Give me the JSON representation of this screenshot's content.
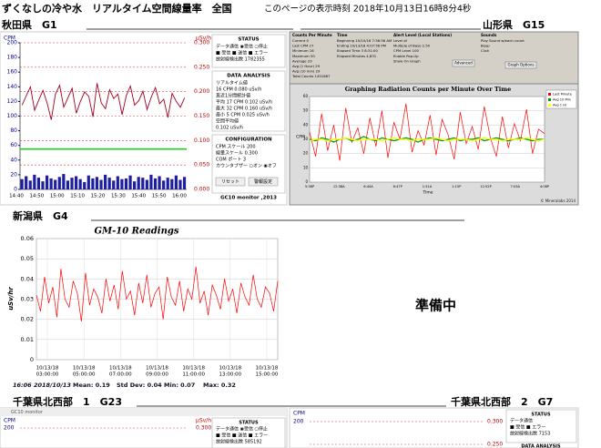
{
  "header": {
    "title": "ずくなしの冷や水　リアルタイム空間線量率　全国",
    "timestamp": "このページの表示時刻 2018年10月13日16時8分4秒"
  },
  "stations": [
    "秋田県　G1",
    "山形県　G15",
    "新潟県　G4",
    "千葉県北西部　1　G23",
    "千葉県北西部　2　G7"
  ],
  "akita": {
    "y_label": "CPM",
    "y2_label": "µSv/h",
    "ylim": [
      0,
      200
    ],
    "yticks": [
      0,
      20,
      40,
      60,
      80,
      100,
      120,
      140,
      160,
      180,
      200
    ],
    "y2lim": [
      0,
      0.3
    ],
    "y2ticks": [
      {
        "value": 0,
        "label": "0.000"
      },
      {
        "value": 0.05,
        "label": "0.050"
      },
      {
        "value": 0.1,
        "label": "0.100"
      },
      {
        "value": 0.15,
        "label": "0.150"
      },
      {
        "value": 0.2,
        "label": "0.200"
      },
      {
        "value": 0.25,
        "label": "0.250"
      },
      {
        "value": 0.3,
        "label": "0.300"
      }
    ],
    "x_labels": [
      "14:40",
      "14:50",
      "15:00",
      "15:10",
      "15:20",
      "15:30",
      "15:40",
      "15:50",
      "16:00"
    ],
    "cpm": [
      115,
      128,
      140,
      108,
      122,
      135,
      118,
      95,
      130,
      142,
      112,
      125,
      138,
      104,
      120,
      133,
      127,
      99,
      145,
      118,
      110,
      136,
      124,
      130,
      102,
      128,
      141,
      115,
      121,
      134,
      109,
      126,
      139,
      117,
      123,
      98,
      131,
      120,
      112,
      125
    ],
    "bars": [
      14,
      18,
      12,
      20,
      16,
      11,
      19,
      15,
      13,
      17,
      21,
      12,
      16,
      18,
      14,
      10,
      19,
      15,
      17,
      13,
      20,
      16,
      12,
      18,
      14,
      15,
      19,
      11,
      17,
      16,
      13,
      20,
      15,
      18,
      12,
      16,
      14,
      19,
      13,
      17
    ],
    "threshold": 55,
    "sidebar": [
      {
        "heading": "STATUS",
        "lines": [
          "データ通信 ◉受信 ○停止",
          "■ 受信 ■ 送信 ■ エラー",
          "放射線検出数 1782355"
        ]
      },
      {
        "heading": "DATA ANALYSIS",
        "lines": [
          "リアルタイム値",
          "16 CPM 0.080 uSv/h",
          "直近1分間統計値",
          "平均 17 CPM 0.102 uSv/h",
          "最大 32 CPM 0.160 uSv/h",
          "最小 5 CPM 0.025 uSv/h",
          "空間平均値",
          "0.102 uSv/h"
        ]
      },
      {
        "heading": "CONFIGURATION",
        "lines": [
          "CPM スケール 200",
          "線量スケール 0.300",
          "COM ポート 3",
          "カウンタブザー ○オン ◉オフ"
        ]
      }
    ],
    "buttons": [
      "リセット",
      "警報設定"
    ],
    "footer": "GC10 monitor ,2013"
  },
  "yamagata": {
    "controls": [
      {
        "heading": "Counts Per Minute",
        "lines": [
          "Current 0",
          "Last CPM 27",
          "Minimum 16",
          "Maximum 50",
          "Average 29",
          "Avg (1 Hour) 29",
          "Avg (10 min) 29",
          "Total Counts 1451867"
        ]
      },
      {
        "heading": "Time",
        "lines": [
          "Beginning 10/10/18 7:36:56 AM",
          "Ending 10/13/18 4:07:56 PM",
          "Elapsed Time 3 8:31:00",
          "Elapsed Minutes 4,831"
        ]
      },
      {
        "heading": "Alert Level (Local Stations)",
        "lines": [
          "Level of",
          "Multiple of Base 2.50",
          "CPM Level 100",
          "Enable Pop-Up",
          "Show On Graph"
        ]
      },
      {
        "heading": "Sounds",
        "lines": [
          "Play Sound w/each count",
          "Beep",
          "Click"
        ]
      }
    ],
    "buttons": [
      "Advanced",
      "Graph Options"
    ],
    "chart": {
      "title": "Graphing Radiation Counts per Minute Over Time",
      "y_label": "CPM",
      "x_title": "Time",
      "ylim": [
        0,
        60
      ],
      "yticks": [
        0,
        10,
        20,
        30,
        40,
        50,
        60
      ],
      "x_labels": [
        "5:38P",
        "12:38A",
        "6:44A",
        "6:47P",
        "1:51A",
        "1:15P",
        "12:52P",
        "7:03A",
        "4:08P"
      ],
      "series": [
        {
          "name": "Last Minute",
          "color": "#ff0000",
          "values": [
            35,
            18,
            48,
            22,
            40,
            15,
            52,
            28,
            38,
            20,
            45,
            25,
            50,
            17,
            42,
            30,
            55,
            21,
            36,
            26,
            47,
            19,
            44,
            33,
            16,
            49,
            27,
            39,
            23,
            53,
            31,
            18,
            46,
            24,
            41,
            29,
            51,
            20,
            37,
            34
          ]
        },
        {
          "name": "Avg 10 Min",
          "color": "#00a000",
          "values": [
            30,
            29,
            31,
            30,
            28,
            30,
            31,
            29,
            30,
            32,
            30,
            29,
            31,
            30,
            29,
            30,
            31,
            30,
            28,
            30,
            31,
            30,
            29,
            30,
            31,
            29,
            30,
            30,
            31,
            29,
            30,
            31,
            30,
            29,
            30,
            31,
            30,
            29,
            30,
            30
          ]
        },
        {
          "name": "Avg 1 Hr",
          "color": "#ffff00",
          "values": [
            29,
            30,
            30,
            29,
            30,
            30,
            31,
            30,
            29,
            30,
            30,
            30,
            29,
            30,
            31,
            30,
            30,
            29,
            30,
            30,
            30,
            31,
            30,
            29,
            30,
            30,
            30,
            29,
            30,
            31,
            30,
            30,
            29,
            30,
            30,
            30,
            31,
            30,
            29,
            30
          ]
        }
      ],
      "footer": "© Mineralabs 2014"
    }
  },
  "niigata": {
    "title": "GM-10 Readings",
    "y_label": "uSv/hr",
    "ylim": [
      0,
      0.06
    ],
    "yticks": [
      0,
      0.01,
      0.02,
      0.03,
      0.04,
      0.05,
      0.06
    ],
    "color": "#ff0000",
    "x_labels": [
      {
        "date": "10/13/18",
        "time": "03:00:00"
      },
      {
        "date": "10/13/18",
        "time": "05:00:00"
      },
      {
        "date": "10/13/18",
        "time": "07:00:00"
      },
      {
        "date": "10/13/18",
        "time": "09:00:00"
      },
      {
        "date": "10/13/18",
        "time": "11:00:00"
      },
      {
        "date": "10/13/18",
        "time": "13:00:00"
      },
      {
        "date": "10/13/18",
        "time": "15:00:00"
      }
    ],
    "values": [
      0.032,
      0.024,
      0.041,
      0.028,
      0.036,
      0.021,
      0.045,
      0.03,
      0.026,
      0.039,
      0.033,
      0.019,
      0.043,
      0.027,
      0.035,
      0.031,
      0.023,
      0.04,
      0.029,
      0.037,
      0.025,
      0.044,
      0.03,
      0.034,
      0.022,
      0.038,
      0.028,
      0.042,
      0.026,
      0.033,
      0.036,
      0.02,
      0.041,
      0.031,
      0.027,
      0.039,
      0.024,
      0.035,
      0.03,
      0.046,
      0.028,
      0.034,
      0.022,
      0.037,
      0.032,
      0.025,
      0.04,
      0.029,
      0.035,
      0.023,
      0.038,
      0.031,
      0.027,
      0.042,
      0.03,
      0.026,
      0.036,
      0.033,
      0.024,
      0.039
    ],
    "footer": [
      "16:06  2018/10/13",
      "Mean: 0.19",
      "Std Dev: 0.04",
      "Min: 0.07",
      "Max: 0.32"
    ]
  },
  "placeholder": "準備中",
  "chiba1": {
    "window_title": "GC10 monitor",
    "y_label": "CPM",
    "ytop": 200,
    "y2_label": "µSv/h",
    "y2top": "0.300",
    "status": [
      "STATUS",
      "データ通信 ◉受信 ○停止",
      "■ 受信 ■ 送信 ■ エラー",
      "放射線検出数 585192"
    ]
  },
  "chiba2": {
    "y_label": "CPM",
    "ytop": 200,
    "y2top": "0.300",
    "y2next": "0.250",
    "status": [
      "STATUS",
      "データ通信",
      "■ 受信 ■ エラー",
      "放射線検出数 7153"
    ],
    "cut_heading": "DATA ANALYSIS"
  }
}
